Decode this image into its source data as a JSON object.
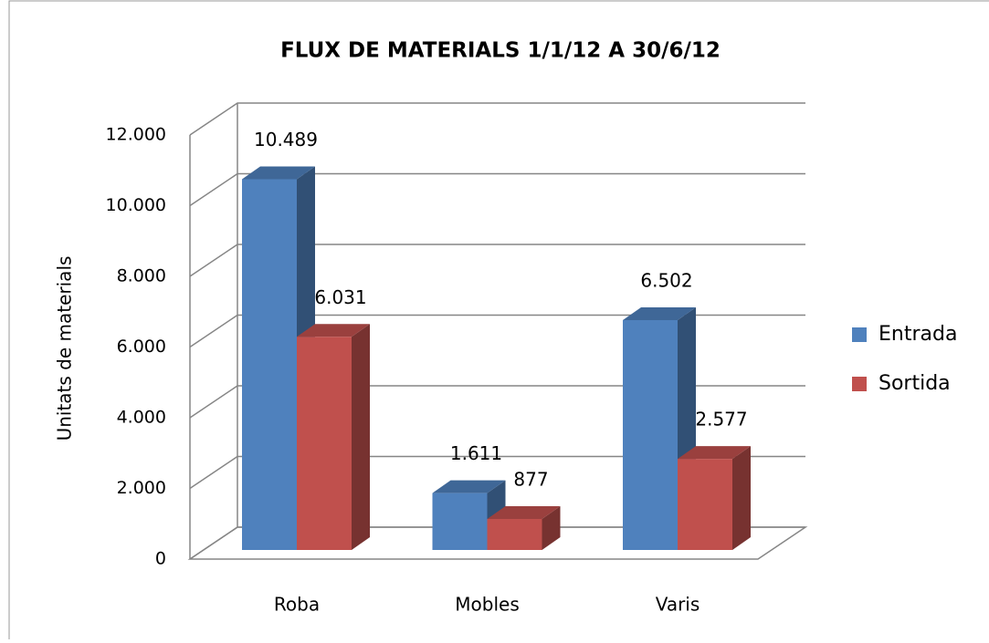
{
  "chart_data": {
    "type": "bar3d",
    "title": "FLUX DE MATERIALS 1/1/12 A 30/6/12",
    "y_label": "Unitats de materials",
    "categories": [
      "Roba",
      "Mobles",
      "Varis"
    ],
    "series": [
      {
        "name": "Entrada",
        "color": "#4f81bd",
        "values": [
          10489,
          1611,
          6502
        ],
        "value_labels": [
          "10.489",
          "1.611",
          "6.502"
        ]
      },
      {
        "name": "Sortida",
        "color": "#c0504d",
        "values": [
          6031,
          877,
          2577
        ],
        "value_labels": [
          "6.031",
          "877",
          "2.577"
        ]
      }
    ],
    "ylim": [
      0,
      12000
    ],
    "yticks": [
      0,
      {
        "value": 2000,
        "label": "2.000"
      },
      {
        "value": 4000,
        "label": "4.000"
      },
      {
        "value": 6000,
        "label": "6.000"
      },
      {
        "value": 8000,
        "label": "8.000"
      },
      {
        "value": 10000,
        "label": "10.000"
      },
      {
        "value": 12000,
        "label": "12.000"
      }
    ],
    "grid": true,
    "legend": "right"
  }
}
